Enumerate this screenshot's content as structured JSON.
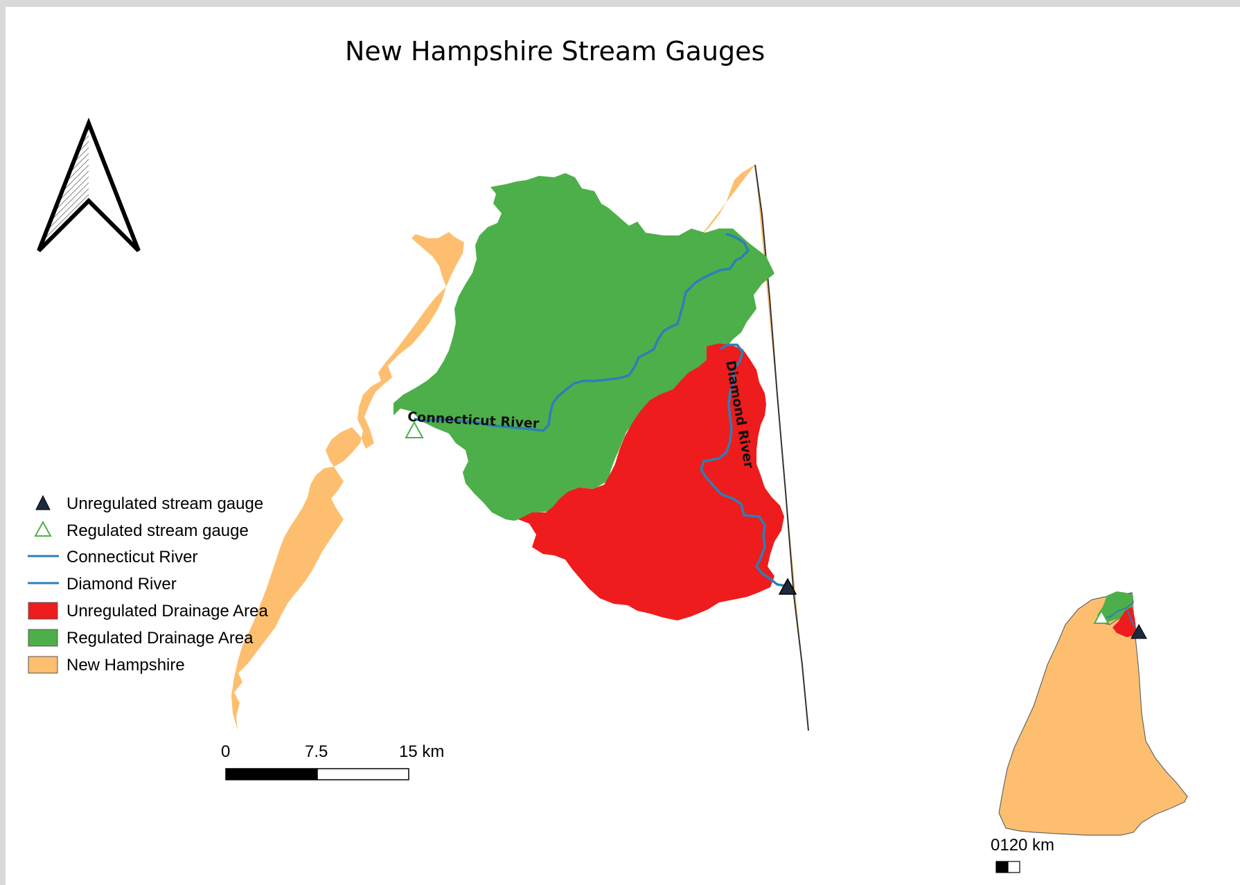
{
  "title": "New Hampshire Stream Gauges",
  "colors": {
    "new_hampshire": "#FDBF6F",
    "regulated_area": "#4DAF4A",
    "unregulated_area": "#EE1C1C",
    "river": "#2C7FB8",
    "unregulated_gauge": "#1B2A3C",
    "regulated_gauge_outline": "#4DAF4A"
  },
  "labels": {
    "connecticut_river": "Connecticut River",
    "diamond_river": "Diamond River"
  },
  "legend": {
    "items": [
      {
        "label": "Unregulated stream gauge",
        "symbol": "filled-triangle"
      },
      {
        "label": "Regulated stream gauge",
        "symbol": "hollow-triangle"
      },
      {
        "label": "Connecticut River",
        "symbol": "line"
      },
      {
        "label": "Diamond River",
        "symbol": "line"
      },
      {
        "label": "Unregulated Drainage Area",
        "symbol": "red-patch"
      },
      {
        "label": "Regulated Drainage Area",
        "symbol": "green-patch"
      },
      {
        "label": "New Hampshire",
        "symbol": "orange-patch"
      }
    ]
  },
  "scale_bar": {
    "ticks": [
      "0",
      "7.5",
      "15 km"
    ]
  },
  "inset": {
    "scale_text": "0120 km"
  },
  "north_arrow": {
    "icon": "north-arrow-icon"
  }
}
